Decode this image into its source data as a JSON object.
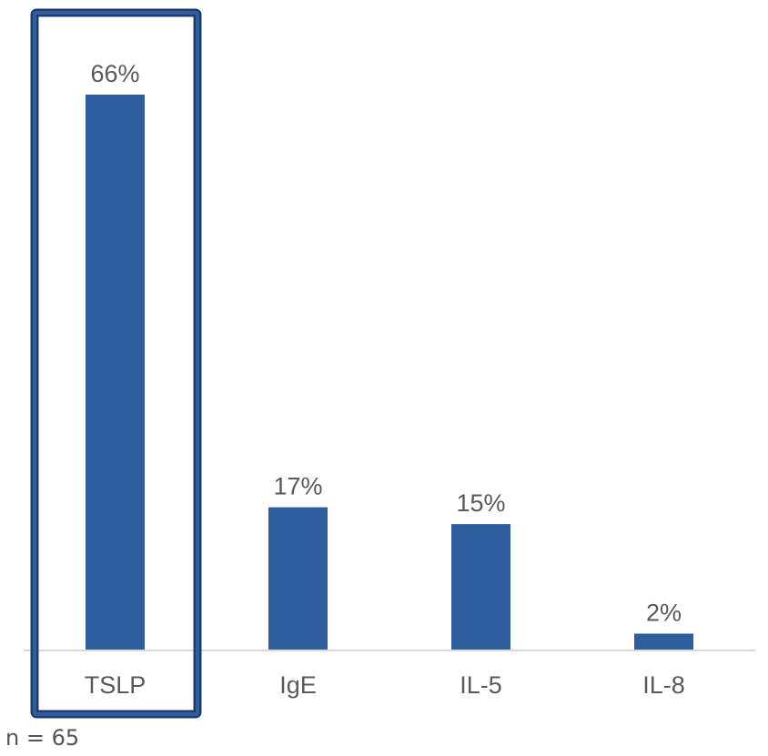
{
  "chart_data": {
    "type": "bar",
    "categories": [
      "TSLP",
      "IgE",
      "IL-5",
      "IL-8"
    ],
    "values": [
      66,
      17,
      15,
      2
    ],
    "value_labels": [
      "66%",
      "17%",
      "15%",
      "2%"
    ],
    "ylim": [
      0,
      66
    ],
    "grid": false,
    "highlighted_category": "TSLP",
    "bar_color": "#2E5E9E",
    "highlight_color": "#1F3E6E"
  },
  "footnote": "n = 65"
}
